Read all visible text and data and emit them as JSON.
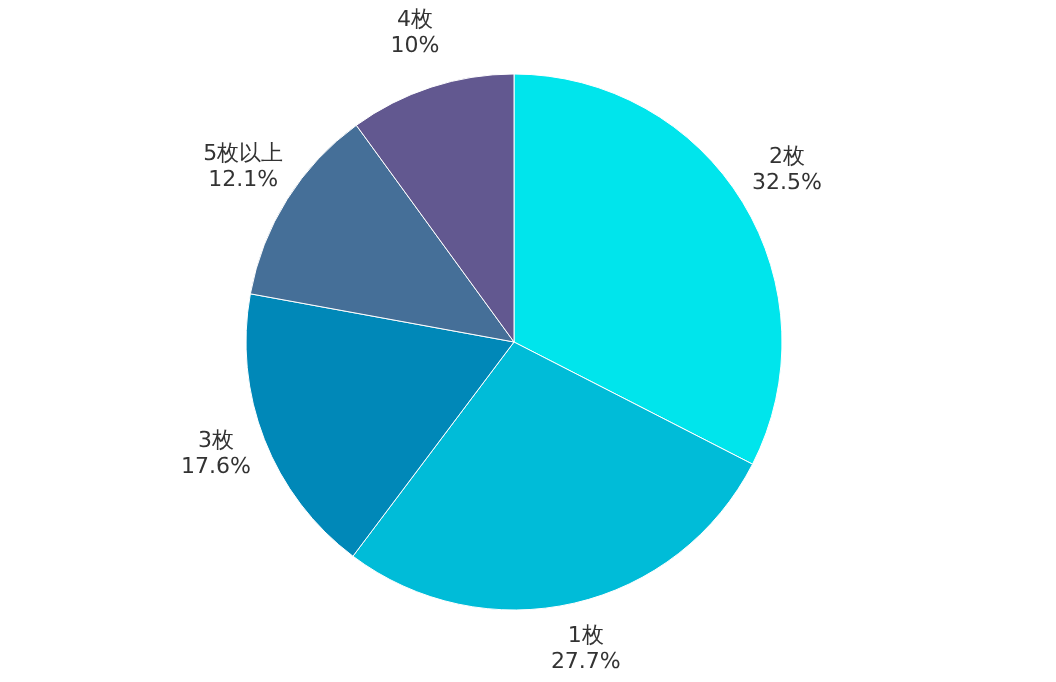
{
  "chart_data": {
    "type": "pie",
    "categories": [
      "2枚",
      "1枚",
      "3枚",
      "5枚以上",
      "4枚"
    ],
    "values": [
      32.5,
      27.7,
      17.6,
      12.1,
      10
    ],
    "colors": [
      "#00e5ec",
      "#00bcd8",
      "#0088b8",
      "#456f98",
      "#625890"
    ],
    "value_labels": [
      "32.5%",
      "27.7%",
      "17.6%",
      "12.1%",
      "10%"
    ]
  }
}
